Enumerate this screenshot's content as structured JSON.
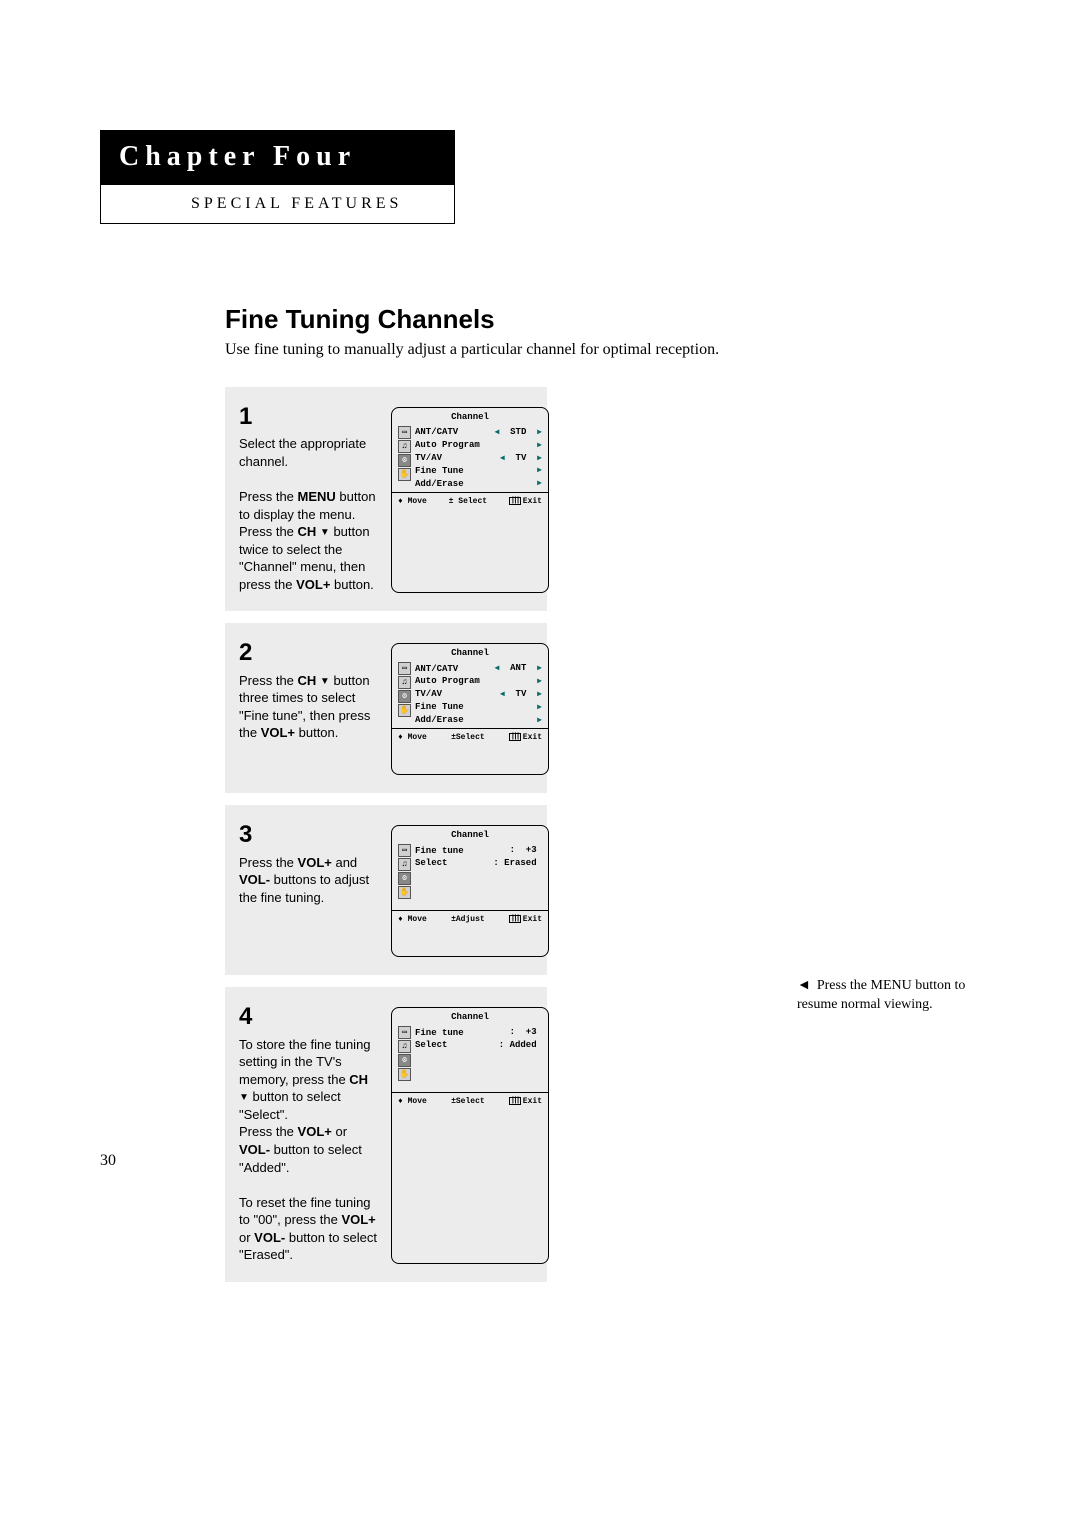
{
  "chapter": {
    "title": "Chapter Four",
    "subtitle": "SPECIAL FEATURES"
  },
  "section": {
    "title": "Fine Tuning Channels",
    "subtitle": "Use fine tuning to manually adjust a particular channel for optimal reception."
  },
  "page_number": "30",
  "colors": {
    "background": "#ffffff",
    "step_background": "#ececec",
    "chapter_bg": "#000000",
    "chapter_fg": "#ffffff",
    "osd_arrow": "#0a6a6a"
  },
  "side_note": "Press the MENU button to resume normal viewing.",
  "steps": [
    {
      "num": "1",
      "html": "Select the appropriate channel.<br><br>Press the <b>MENU</b> button to display the menu.<br>Press the <b>CH <span class='down-tri'>▼</span></b> button twice to select the \"Channel\" menu, then press the <b>VOL+</b> button.",
      "osd": {
        "title": "Channel",
        "icons_sel": 2,
        "rows": [
          {
            "label": "ANT/CATV",
            "left": "◀",
            "val": "STD",
            "right": "▶",
            "hl": true
          },
          {
            "label": "Auto Program",
            "left": "",
            "val": "",
            "right": "▶",
            "hl": false
          },
          {
            "label": "TV/AV",
            "left": "◀",
            "val": "TV",
            "right": "▶",
            "hl": false
          },
          {
            "label": "Fine Tune",
            "left": "",
            "val": "",
            "right": "▶",
            "hl": false
          },
          {
            "label": "Add/Erase",
            "left": "",
            "val": "",
            "right": "▶",
            "hl": false
          }
        ],
        "foot": [
          "♦ Move",
          "± Select",
          "Exit"
        ],
        "foot_mid_label": "± Select"
      }
    },
    {
      "num": "2",
      "html": "Press the <b>CH <span class='down-tri'>▼</span></b> button three times to select \"Fine tune\", then press the <b>VOL+</b> button.",
      "osd": {
        "title": "Channel",
        "icons_sel": 2,
        "rows": [
          {
            "label": "ANT/CATV",
            "left": "◀",
            "val": "ANT",
            "right": "▶",
            "hl": false
          },
          {
            "label": "Auto Program",
            "left": "",
            "val": "",
            "right": "▶",
            "hl": false
          },
          {
            "label": "TV/AV",
            "left": "◀",
            "val": "TV",
            "right": "▶",
            "hl": false
          },
          {
            "label": "Fine Tune",
            "left": "",
            "val": "",
            "right": "▶",
            "hl": true
          },
          {
            "label": "Add/Erase",
            "left": "",
            "val": "",
            "right": "▶",
            "hl": false
          }
        ],
        "foot": [
          "♦ Move",
          "± Select",
          "Exit"
        ],
        "foot_mid_label": "±Select"
      }
    },
    {
      "num": "3",
      "html": "Press the <b>VOL+</b> and <b>VOL-</b> buttons to adjust the fine tuning.",
      "osd": {
        "title": "Channel",
        "icons_sel": 2,
        "rows": [
          {
            "label": "Fine tune",
            "left": "",
            "val": ":  +3",
            "right": "",
            "hl": true
          },
          {
            "label": "Select",
            "left": "",
            "val": ": Erased",
            "right": "",
            "hl": false
          },
          {
            "label": "",
            "left": "",
            "val": "",
            "right": "",
            "hl": false
          },
          {
            "label": "",
            "left": "",
            "val": "",
            "right": "",
            "hl": false
          },
          {
            "label": "",
            "left": "",
            "val": "",
            "right": "",
            "hl": false
          }
        ],
        "foot": [
          "♦ Move",
          "± Adjust",
          "Exit"
        ],
        "foot_mid_label": "±Adjust"
      }
    },
    {
      "num": "4",
      "html": "To store the fine tuning setting in the TV's memory, press the <b>CH <span class='down-tri'>▼</span></b> button to select \"Select\".<br>Press the <b>VOL+</b> or <b>VOL-</b> button to select \"Added\".<br><br>To reset the fine tuning to \"00\", press the <b>VOL+</b> or <b>VOL-</b> button to select \"Erased\".",
      "osd": {
        "title": "Channel",
        "icons_sel": 2,
        "rows": [
          {
            "label": "Fine tune",
            "left": "",
            "val": ":  +3",
            "right": "",
            "hl": false
          },
          {
            "label": "Select",
            "left": "",
            "val": ": Added",
            "right": "",
            "hl": true
          },
          {
            "label": "",
            "left": "",
            "val": "",
            "right": "",
            "hl": false
          },
          {
            "label": "",
            "left": "",
            "val": "",
            "right": "",
            "hl": false
          },
          {
            "label": "",
            "left": "",
            "val": "",
            "right": "",
            "hl": false
          }
        ],
        "foot": [
          "♦ Move",
          "± Select",
          "Exit"
        ],
        "foot_mid_label": "±Select"
      }
    }
  ]
}
